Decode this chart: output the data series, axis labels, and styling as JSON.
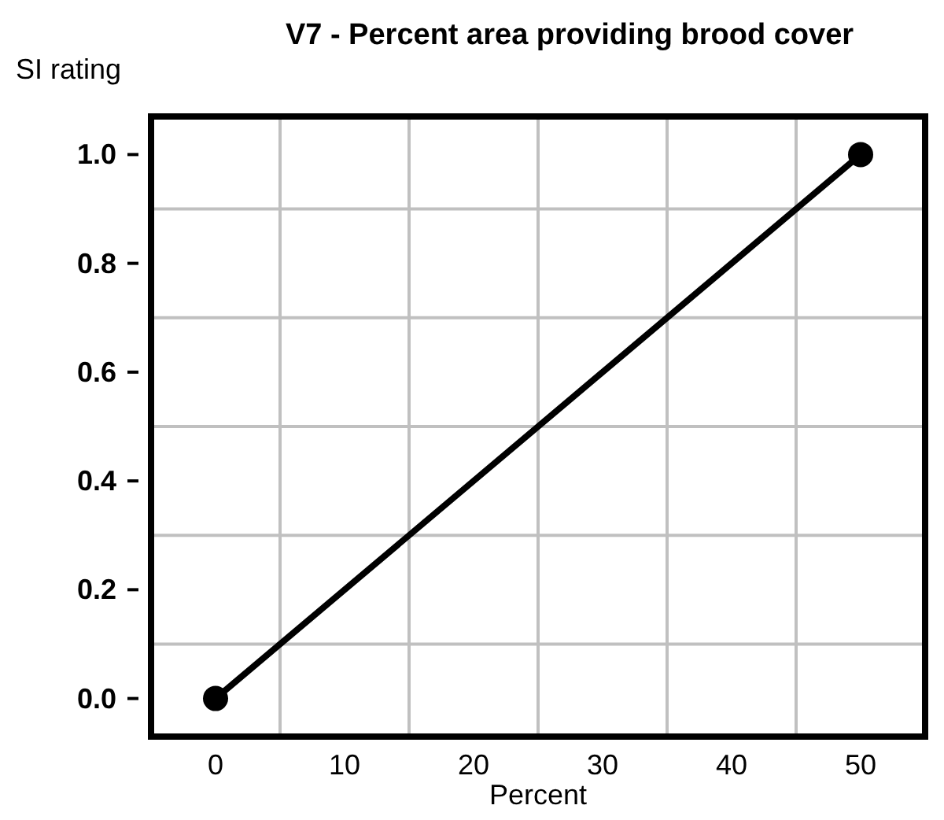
{
  "chart_data": {
    "type": "line",
    "title": "V7 - Percent area providing brood cover",
    "xlabel": "Percent",
    "ylabel": "SI rating",
    "x": [
      0,
      50
    ],
    "series": [
      {
        "color": "#000000",
        "values": [
          0,
          1
        ]
      }
    ],
    "xlim": [
      -5,
      55
    ],
    "ylim": [
      -0.07,
      1.07
    ],
    "xticks": [
      0,
      {
        "value": 5,
        "label": null
      },
      10,
      {
        "value": 15,
        "label": null
      },
      20,
      {
        "value": 25,
        "label": null
      },
      30,
      {
        "value": 35,
        "label": null
      },
      40,
      {
        "value": 45,
        "label": null
      },
      50
    ],
    "yticks": [
      {
        "value": 0,
        "label": "0.0"
      },
      {
        "value": 0.1,
        "label": null
      },
      0.2,
      {
        "value": 0.3,
        "label": null
      },
      0.4,
      {
        "value": 0.5,
        "label": null
      },
      0.6,
      {
        "value": 0.7,
        "label": null
      },
      0.8,
      {
        "value": 0.9,
        "label": null
      },
      {
        "value": 1,
        "label": "1.0"
      }
    ],
    "grid": true,
    "marker": "circle",
    "line_style": "solid"
  }
}
